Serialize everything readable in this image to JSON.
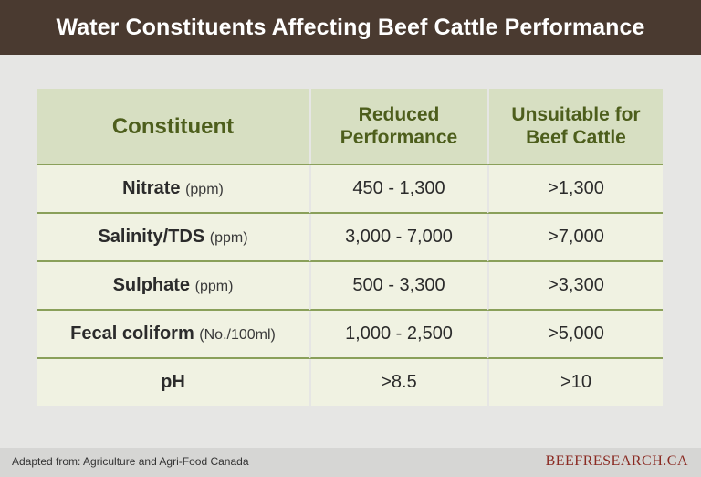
{
  "title": "Water Constituents Affecting Beef Cattle Performance",
  "table": {
    "headers": [
      "Constituent",
      "Reduced Performance",
      "Unsuitable for Beef Cattle"
    ],
    "rows": [
      {
        "name": "Nitrate",
        "unit": "(ppm)",
        "reduced": "450 - 1,300",
        "unsuitable": ">1,300"
      },
      {
        "name": "Salinity/TDS",
        "unit": "(ppm)",
        "reduced": "3,000 - 7,000",
        "unsuitable": ">7,000"
      },
      {
        "name": "Sulphate",
        "unit": "(ppm)",
        "reduced": "500 - 3,300",
        "unsuitable": ">3,300"
      },
      {
        "name": "Fecal coliform",
        "unit": "(No./100ml)",
        "reduced": "1,000 - 2,500",
        "unsuitable": ">5,000"
      },
      {
        "name": "pH",
        "unit": "",
        "reduced": ">8.5",
        "unsuitable": ">10"
      }
    ]
  },
  "footer": {
    "source": "Adapted from: Agriculture and Agri-Food Canada",
    "brand": "BEEFRESEARCH.CA"
  },
  "colors": {
    "title_bar": "#4a3a30",
    "header_bg": "#d7dfc2",
    "header_text": "#4d5e1c",
    "row_bg": "#f0f2e2",
    "rule": "#8aa05a",
    "brand": "#8a2a22"
  }
}
